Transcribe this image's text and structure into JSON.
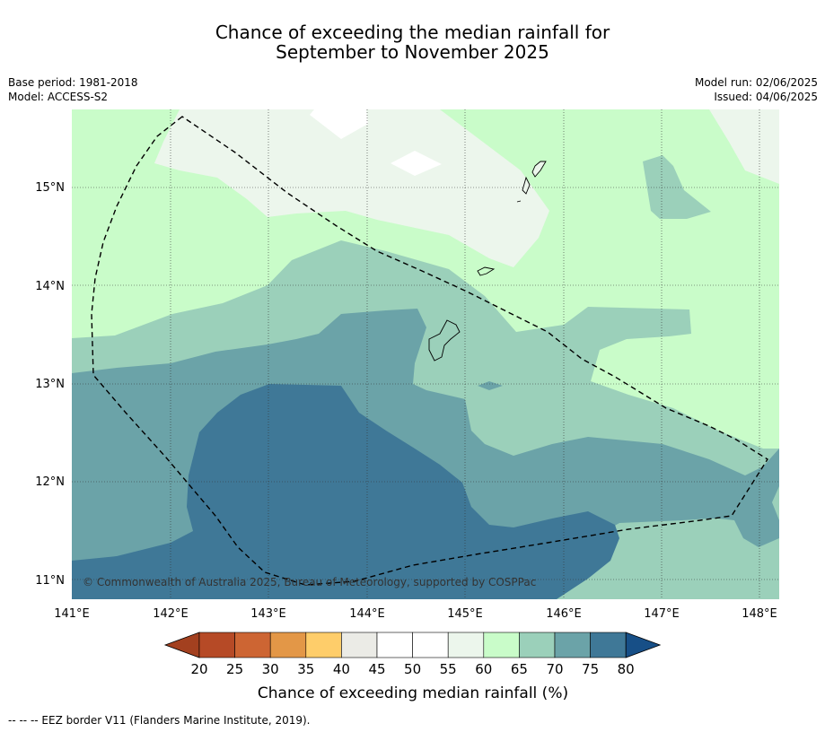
{
  "title": {
    "line1": "Chance of exceeding the median rainfall for",
    "line2": "September to November 2025"
  },
  "meta_left": [
    "Base period: 1981-2018",
    "Model: ACCESS-S2"
  ],
  "meta_right": [
    "Model run: 02/06/2025",
    "Issued: 04/06/2025"
  ],
  "map": {
    "lon_range": [
      141.0,
      148.2
    ],
    "lat_range": [
      10.8,
      15.8
    ],
    "lon_ticks": [
      "141°E",
      "142°E",
      "143°E",
      "144°E",
      "145°E",
      "146°E",
      "147°E",
      "148°E"
    ],
    "lat_ticks": [
      "15°N",
      "14°N",
      "13°N",
      "12°N",
      "11°N"
    ],
    "gridlines": true,
    "copyright": "© Commonwealth of Australia 2025, Bureau of Meteorology, supported by COSPPac"
  },
  "colorbar": {
    "label": "Chance of exceeding median rainfall (%)",
    "ticks": [
      "20",
      "25",
      "30",
      "35",
      "40",
      "45",
      "50",
      "55",
      "60",
      "65",
      "70",
      "75",
      "80"
    ],
    "colors": [
      "#a3401f",
      "#b64a26",
      "#cd6533",
      "#e39747",
      "#fecd6a",
      "#ebebe6",
      "#ffffff",
      "#ffffff",
      "#ecf6ec",
      "#c9fcc9",
      "#9bd0ba",
      "#6ba3a8",
      "#3f7897",
      "#174f87"
    ]
  },
  "footer": "--  --  -- EEZ border V11 (Flanders Marine Institute, 2019)."
}
